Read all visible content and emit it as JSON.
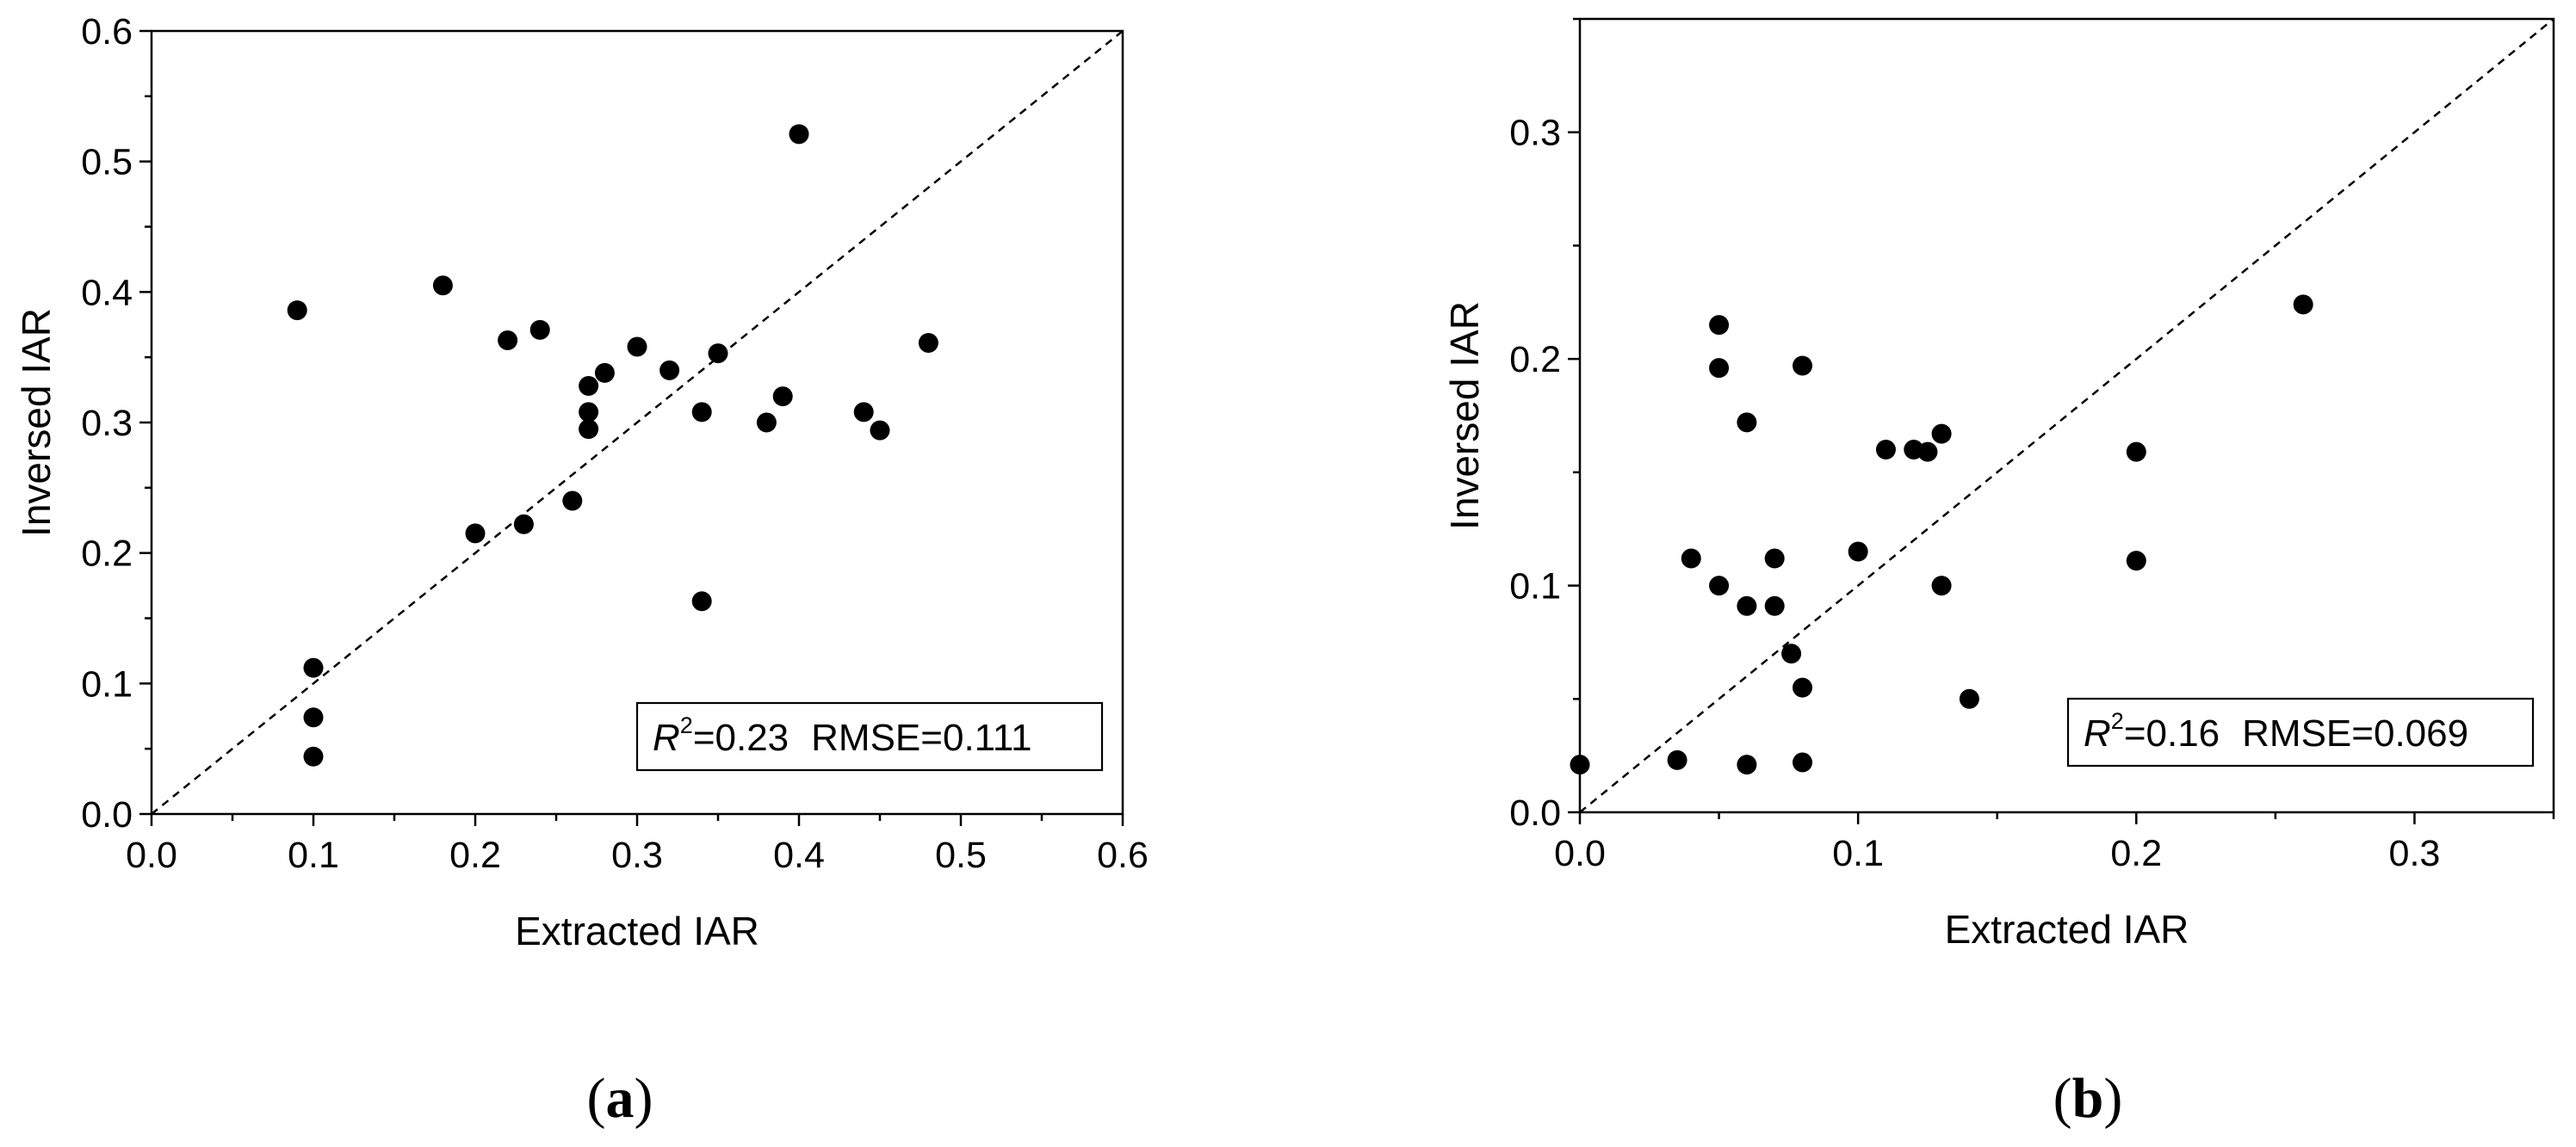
{
  "chart_data": [
    {
      "type": "scatter",
      "panel_label": "a",
      "xlabel": "Extracted IAR",
      "ylabel": "Inversed IAR",
      "xlim": [
        0.0,
        0.6
      ],
      "ylim": [
        0.0,
        0.6
      ],
      "xticks": [
        "0.0",
        "0.1",
        "0.2",
        "0.3",
        "0.4",
        "0.5",
        "0.6"
      ],
      "yticks": [
        "0.0",
        "0.1",
        "0.2",
        "0.3",
        "0.4",
        "0.5",
        "0.6"
      ],
      "reference_line": "1:1 dashed",
      "grid": false,
      "stats": {
        "r2_label": "R",
        "r2_sup": "2",
        "r2_value": "=0.23",
        "rmse": "RMSE=0.111"
      },
      "points": [
        {
          "x": 0.09,
          "y": 0.386
        },
        {
          "x": 0.1,
          "y": 0.112
        },
        {
          "x": 0.1,
          "y": 0.074
        },
        {
          "x": 0.1,
          "y": 0.044
        },
        {
          "x": 0.18,
          "y": 0.405
        },
        {
          "x": 0.2,
          "y": 0.215
        },
        {
          "x": 0.22,
          "y": 0.363
        },
        {
          "x": 0.23,
          "y": 0.222
        },
        {
          "x": 0.24,
          "y": 0.371
        },
        {
          "x": 0.26,
          "y": 0.24
        },
        {
          "x": 0.27,
          "y": 0.328
        },
        {
          "x": 0.27,
          "y": 0.308
        },
        {
          "x": 0.27,
          "y": 0.295
        },
        {
          "x": 0.28,
          "y": 0.338
        },
        {
          "x": 0.3,
          "y": 0.358
        },
        {
          "x": 0.32,
          "y": 0.34
        },
        {
          "x": 0.34,
          "y": 0.308
        },
        {
          "x": 0.34,
          "y": 0.163
        },
        {
          "x": 0.35,
          "y": 0.353
        },
        {
          "x": 0.38,
          "y": 0.3
        },
        {
          "x": 0.39,
          "y": 0.32
        },
        {
          "x": 0.4,
          "y": 0.521
        },
        {
          "x": 0.44,
          "y": 0.308
        },
        {
          "x": 0.45,
          "y": 0.294
        },
        {
          "x": 0.48,
          "y": 0.361
        }
      ]
    },
    {
      "type": "scatter",
      "panel_label": "b",
      "xlabel": "Extracted IAR",
      "ylabel": "Inversed IAR",
      "xlim": [
        0.0,
        0.35
      ],
      "ylim": [
        0.0,
        0.35
      ],
      "xticks": [
        "0.0",
        "0.1",
        "0.2",
        "0.3"
      ],
      "yticks": [
        "0.0",
        "0.1",
        "0.2",
        "0.3"
      ],
      "reference_line": "1:1 dashed",
      "grid": false,
      "stats": {
        "r2_label": "R",
        "r2_sup": "2",
        "r2_value": "=0.16",
        "rmse": "RMSE=0.069"
      },
      "points": [
        {
          "x": 0.0,
          "y": 0.021
        },
        {
          "x": 0.035,
          "y": 0.023
        },
        {
          "x": 0.04,
          "y": 0.112
        },
        {
          "x": 0.05,
          "y": 0.215
        },
        {
          "x": 0.05,
          "y": 0.196
        },
        {
          "x": 0.05,
          "y": 0.1
        },
        {
          "x": 0.06,
          "y": 0.172
        },
        {
          "x": 0.06,
          "y": 0.091
        },
        {
          "x": 0.06,
          "y": 0.021
        },
        {
          "x": 0.07,
          "y": 0.112
        },
        {
          "x": 0.07,
          "y": 0.091
        },
        {
          "x": 0.076,
          "y": 0.07
        },
        {
          "x": 0.08,
          "y": 0.197
        },
        {
          "x": 0.08,
          "y": 0.055
        },
        {
          "x": 0.08,
          "y": 0.022
        },
        {
          "x": 0.1,
          "y": 0.115
        },
        {
          "x": 0.11,
          "y": 0.16
        },
        {
          "x": 0.12,
          "y": 0.16
        },
        {
          "x": 0.125,
          "y": 0.159
        },
        {
          "x": 0.13,
          "y": 0.167
        },
        {
          "x": 0.13,
          "y": 0.1
        },
        {
          "x": 0.14,
          "y": 0.05
        },
        {
          "x": 0.2,
          "y": 0.159
        },
        {
          "x": 0.2,
          "y": 0.111
        },
        {
          "x": 0.26,
          "y": 0.224
        }
      ]
    }
  ]
}
